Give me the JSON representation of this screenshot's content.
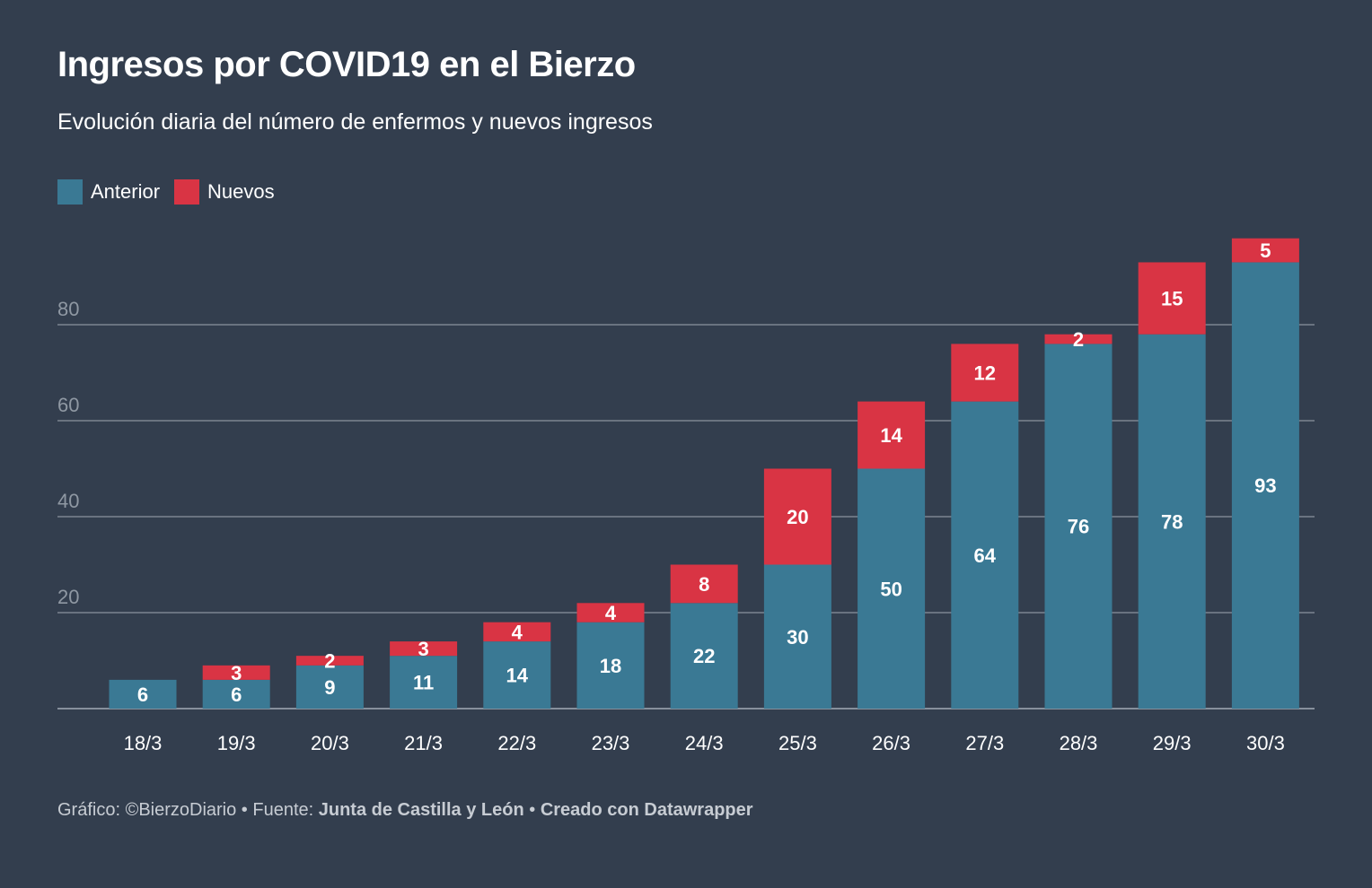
{
  "title": "Ingresos por COVID19 en el Bierzo",
  "subtitle": "Evolución diaria del número de enfermos y nuevos ingresos",
  "legend": {
    "anterior": "Anterior",
    "nuevos": "Nuevos"
  },
  "colors": {
    "background": "#333e4e",
    "anterior": "#3a7994",
    "nuevos": "#d93444",
    "grid": "#8a939e",
    "axis_text": "#8f98a3"
  },
  "footer": {
    "prefix": "Gráfico: ©BierzoDiario • Fuente: ",
    "source": "Junta de Castilla y León",
    "separator": " • ",
    "credit": "Creado con Datawrapper"
  },
  "chart_data": {
    "type": "bar",
    "stacked": true,
    "categories": [
      "18/3",
      "19/3",
      "20/3",
      "21/3",
      "22/3",
      "23/3",
      "24/3",
      "25/3",
      "26/3",
      "27/3",
      "28/3",
      "29/3",
      "30/3"
    ],
    "series": [
      {
        "name": "Anterior",
        "values": [
          6,
          6,
          9,
          11,
          14,
          18,
          22,
          30,
          50,
          64,
          76,
          78,
          93
        ]
      },
      {
        "name": "Nuevos",
        "values": [
          0,
          3,
          2,
          3,
          4,
          4,
          8,
          20,
          14,
          12,
          2,
          15,
          5
        ]
      }
    ],
    "yticks": [
      20,
      40,
      60,
      80
    ],
    "grid": true,
    "legend_position": "top-left"
  }
}
